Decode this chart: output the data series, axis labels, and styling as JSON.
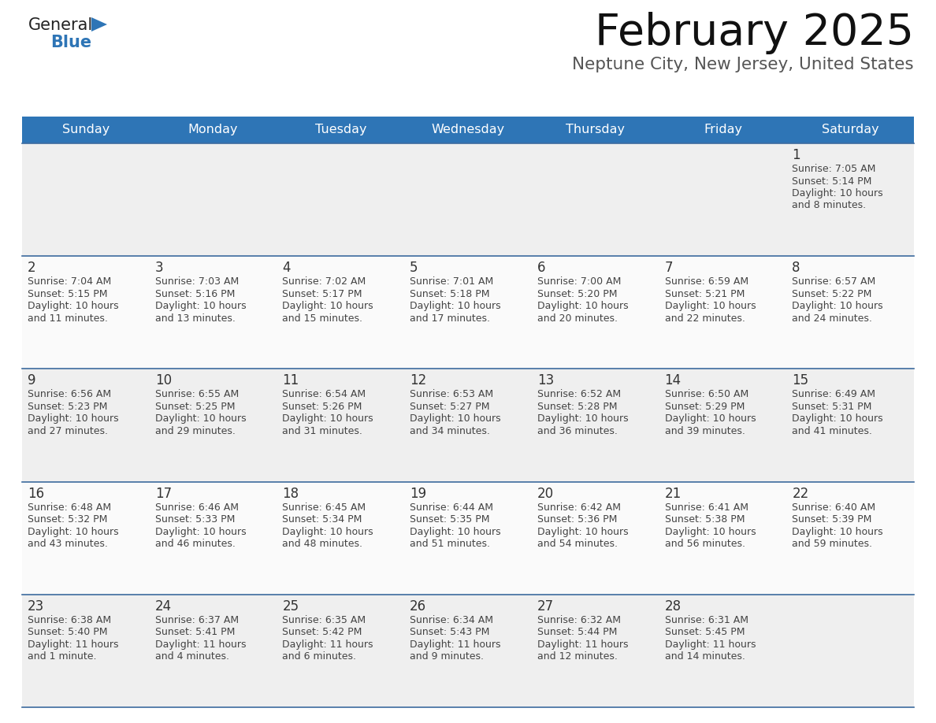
{
  "title": "February 2025",
  "subtitle": "Neptune City, New Jersey, United States",
  "header_bg": "#2E75B6",
  "header_text_color": "#FFFFFF",
  "weekdays": [
    "Sunday",
    "Monday",
    "Tuesday",
    "Wednesday",
    "Thursday",
    "Friday",
    "Saturday"
  ],
  "cell_border_color": "#3D6B9E",
  "row_bg": "#F2F2F2",
  "day_number_color": "#333333",
  "info_text_color": "#444444",
  "title_color": "#111111",
  "subtitle_color": "#555555",
  "logo_general_color": "#222222",
  "logo_blue_color": "#2E75B6",
  "days": [
    {
      "day": 1,
      "col": 6,
      "row": 0,
      "sunrise": "7:05 AM",
      "sunset": "5:14 PM",
      "daylight_hours": 10,
      "daylight_minutes": 8
    },
    {
      "day": 2,
      "col": 0,
      "row": 1,
      "sunrise": "7:04 AM",
      "sunset": "5:15 PM",
      "daylight_hours": 10,
      "daylight_minutes": 11
    },
    {
      "day": 3,
      "col": 1,
      "row": 1,
      "sunrise": "7:03 AM",
      "sunset": "5:16 PM",
      "daylight_hours": 10,
      "daylight_minutes": 13
    },
    {
      "day": 4,
      "col": 2,
      "row": 1,
      "sunrise": "7:02 AM",
      "sunset": "5:17 PM",
      "daylight_hours": 10,
      "daylight_minutes": 15
    },
    {
      "day": 5,
      "col": 3,
      "row": 1,
      "sunrise": "7:01 AM",
      "sunset": "5:18 PM",
      "daylight_hours": 10,
      "daylight_minutes": 17
    },
    {
      "day": 6,
      "col": 4,
      "row": 1,
      "sunrise": "7:00 AM",
      "sunset": "5:20 PM",
      "daylight_hours": 10,
      "daylight_minutes": 20
    },
    {
      "day": 7,
      "col": 5,
      "row": 1,
      "sunrise": "6:59 AM",
      "sunset": "5:21 PM",
      "daylight_hours": 10,
      "daylight_minutes": 22
    },
    {
      "day": 8,
      "col": 6,
      "row": 1,
      "sunrise": "6:57 AM",
      "sunset": "5:22 PM",
      "daylight_hours": 10,
      "daylight_minutes": 24
    },
    {
      "day": 9,
      "col": 0,
      "row": 2,
      "sunrise": "6:56 AM",
      "sunset": "5:23 PM",
      "daylight_hours": 10,
      "daylight_minutes": 27
    },
    {
      "day": 10,
      "col": 1,
      "row": 2,
      "sunrise": "6:55 AM",
      "sunset": "5:25 PM",
      "daylight_hours": 10,
      "daylight_minutes": 29
    },
    {
      "day": 11,
      "col": 2,
      "row": 2,
      "sunrise": "6:54 AM",
      "sunset": "5:26 PM",
      "daylight_hours": 10,
      "daylight_minutes": 31
    },
    {
      "day": 12,
      "col": 3,
      "row": 2,
      "sunrise": "6:53 AM",
      "sunset": "5:27 PM",
      "daylight_hours": 10,
      "daylight_minutes": 34
    },
    {
      "day": 13,
      "col": 4,
      "row": 2,
      "sunrise": "6:52 AM",
      "sunset": "5:28 PM",
      "daylight_hours": 10,
      "daylight_minutes": 36
    },
    {
      "day": 14,
      "col": 5,
      "row": 2,
      "sunrise": "6:50 AM",
      "sunset": "5:29 PM",
      "daylight_hours": 10,
      "daylight_minutes": 39
    },
    {
      "day": 15,
      "col": 6,
      "row": 2,
      "sunrise": "6:49 AM",
      "sunset": "5:31 PM",
      "daylight_hours": 10,
      "daylight_minutes": 41
    },
    {
      "day": 16,
      "col": 0,
      "row": 3,
      "sunrise": "6:48 AM",
      "sunset": "5:32 PM",
      "daylight_hours": 10,
      "daylight_minutes": 43
    },
    {
      "day": 17,
      "col": 1,
      "row": 3,
      "sunrise": "6:46 AM",
      "sunset": "5:33 PM",
      "daylight_hours": 10,
      "daylight_minutes": 46
    },
    {
      "day": 18,
      "col": 2,
      "row": 3,
      "sunrise": "6:45 AM",
      "sunset": "5:34 PM",
      "daylight_hours": 10,
      "daylight_minutes": 48
    },
    {
      "day": 19,
      "col": 3,
      "row": 3,
      "sunrise": "6:44 AM",
      "sunset": "5:35 PM",
      "daylight_hours": 10,
      "daylight_minutes": 51
    },
    {
      "day": 20,
      "col": 4,
      "row": 3,
      "sunrise": "6:42 AM",
      "sunset": "5:36 PM",
      "daylight_hours": 10,
      "daylight_minutes": 54
    },
    {
      "day": 21,
      "col": 5,
      "row": 3,
      "sunrise": "6:41 AM",
      "sunset": "5:38 PM",
      "daylight_hours": 10,
      "daylight_minutes": 56
    },
    {
      "day": 22,
      "col": 6,
      "row": 3,
      "sunrise": "6:40 AM",
      "sunset": "5:39 PM",
      "daylight_hours": 10,
      "daylight_minutes": 59
    },
    {
      "day": 23,
      "col": 0,
      "row": 4,
      "sunrise": "6:38 AM",
      "sunset": "5:40 PM",
      "daylight_hours": 11,
      "daylight_minutes": 1
    },
    {
      "day": 24,
      "col": 1,
      "row": 4,
      "sunrise": "6:37 AM",
      "sunset": "5:41 PM",
      "daylight_hours": 11,
      "daylight_minutes": 4
    },
    {
      "day": 25,
      "col": 2,
      "row": 4,
      "sunrise": "6:35 AM",
      "sunset": "5:42 PM",
      "daylight_hours": 11,
      "daylight_minutes": 6
    },
    {
      "day": 26,
      "col": 3,
      "row": 4,
      "sunrise": "6:34 AM",
      "sunset": "5:43 PM",
      "daylight_hours": 11,
      "daylight_minutes": 9
    },
    {
      "day": 27,
      "col": 4,
      "row": 4,
      "sunrise": "6:32 AM",
      "sunset": "5:44 PM",
      "daylight_hours": 11,
      "daylight_minutes": 12
    },
    {
      "day": 28,
      "col": 5,
      "row": 4,
      "sunrise": "6:31 AM",
      "sunset": "5:45 PM",
      "daylight_hours": 11,
      "daylight_minutes": 14
    }
  ]
}
